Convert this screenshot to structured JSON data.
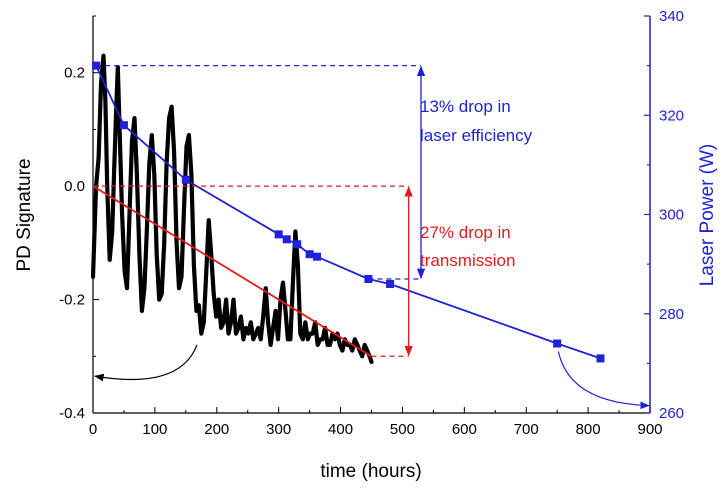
{
  "chart_data": {
    "type": "line",
    "title": "",
    "xlabel": "time (hours)",
    "ylabel": "PD Signature",
    "y2label": "Laser Power (W)",
    "xlim": [
      0,
      900
    ],
    "ylim": [
      -0.4,
      0.3
    ],
    "y2lim": [
      260,
      340
    ],
    "x_ticks": [
      "0",
      "100",
      "200",
      "300",
      "400",
      "500",
      "600",
      "700",
      "800",
      "900"
    ],
    "y_ticks": [
      "-0.4",
      "-0.2",
      "0.0",
      "0.2"
    ],
    "y2_ticks": [
      "260",
      "280",
      "300",
      "320",
      "340"
    ],
    "grid": false,
    "colors": {
      "pd_signature": "#000000",
      "laser_power": "#1f22d6",
      "transmission_fit": "#e21b1b"
    },
    "series": [
      {
        "key": "pd_signature",
        "axis": "left",
        "x": [
          0,
          5,
          9,
          13,
          17,
          20,
          23,
          27,
          31,
          34,
          37,
          40,
          43,
          47,
          51,
          55,
          59,
          63,
          67,
          71,
          75,
          79,
          83,
          87,
          91,
          95,
          99,
          103,
          107,
          111,
          115,
          119,
          123,
          127,
          131,
          135,
          139,
          143,
          147,
          151,
          155,
          159,
          163,
          167,
          171,
          175,
          179,
          183,
          187,
          191,
          195,
          199,
          203,
          207,
          211,
          215,
          219,
          223,
          227,
          231,
          235,
          239,
          243,
          247,
          251,
          255,
          259,
          263,
          267,
          271,
          275,
          279,
          283,
          287,
          291,
          295,
          299,
          303,
          307,
          311,
          315,
          319,
          323,
          327,
          331,
          335,
          339,
          343,
          347,
          351,
          355,
          359,
          363,
          367,
          371,
          375,
          379,
          383,
          387,
          391,
          395,
          399,
          403,
          407,
          411,
          415,
          419,
          423,
          427,
          431,
          435,
          439,
          443,
          447,
          450
        ],
        "y": [
          -0.16,
          0.0,
          0.05,
          0.18,
          0.23,
          0.15,
          0.0,
          -0.13,
          -0.08,
          0.02,
          0.12,
          0.21,
          0.1,
          -0.05,
          -0.15,
          -0.18,
          -0.05,
          0.08,
          0.12,
          0.02,
          -0.12,
          -0.22,
          -0.18,
          -0.08,
          0.04,
          0.09,
          0.02,
          -0.12,
          -0.2,
          -0.19,
          -0.1,
          0.04,
          0.12,
          0.14,
          0.06,
          -0.1,
          -0.18,
          -0.16,
          -0.04,
          0.07,
          0.09,
          0.02,
          -0.14,
          -0.22,
          -0.21,
          -0.26,
          -0.24,
          -0.15,
          -0.06,
          -0.12,
          -0.19,
          -0.23,
          -0.2,
          -0.25,
          -0.24,
          -0.2,
          -0.26,
          -0.24,
          -0.2,
          -0.26,
          -0.25,
          -0.23,
          -0.27,
          -0.25,
          -0.26,
          -0.24,
          -0.27,
          -0.26,
          -0.25,
          -0.27,
          -0.23,
          -0.18,
          -0.24,
          -0.28,
          -0.25,
          -0.22,
          -0.27,
          -0.2,
          -0.17,
          -0.22,
          -0.27,
          -0.27,
          -0.17,
          -0.08,
          -0.14,
          -0.26,
          -0.27,
          -0.24,
          -0.27,
          -0.26,
          -0.26,
          -0.24,
          -0.28,
          -0.27,
          -0.27,
          -0.25,
          -0.28,
          -0.28,
          -0.26,
          -0.27,
          -0.26,
          -0.28,
          -0.29,
          -0.27,
          -0.28,
          -0.28,
          -0.29,
          -0.27,
          -0.28,
          -0.29,
          -0.3,
          -0.28,
          -0.29,
          -0.3,
          -0.31
        ]
      },
      {
        "key": "laser_power",
        "axis": "right",
        "marker": "square",
        "x": [
          5,
          50,
          150,
          300,
          313,
          330,
          350,
          362,
          445,
          480,
          750,
          820
        ],
        "y": [
          330,
          318,
          307,
          296,
          295,
          294,
          292,
          291.5,
          287,
          286,
          274,
          271
        ]
      },
      {
        "key": "transmission_fit",
        "axis": "left",
        "x": [
          0,
          450
        ],
        "y": [
          0.0,
          -0.3
        ]
      }
    ],
    "annotations": {
      "laser_note": [
        "13% drop in",
        "laser efficiency"
      ],
      "transmission_note": [
        "27% drop in",
        "transmission"
      ]
    }
  }
}
